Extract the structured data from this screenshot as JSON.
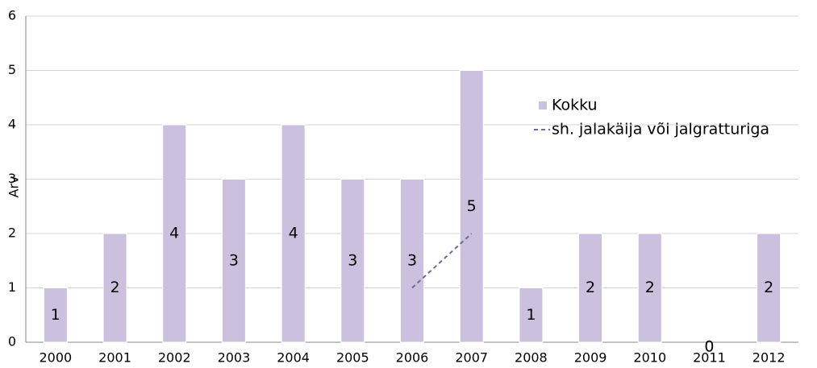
{
  "chart_data": {
    "type": "bar",
    "y_label": "Arv",
    "categories": [
      "2000",
      "2001",
      "2002",
      "2003",
      "2004",
      "2005",
      "2006",
      "2007",
      "2008",
      "2009",
      "2010",
      "2011",
      "2012"
    ],
    "series": [
      {
        "name": "Kokku",
        "type": "bar",
        "color": "#cbc0dd",
        "values": [
          1,
          2,
          4,
          3,
          4,
          3,
          3,
          5,
          1,
          2,
          2,
          0,
          2
        ]
      },
      {
        "name": "sh. jalakäija või jalgratturiga",
        "type": "line",
        "color": "#6b6b9b",
        "values": [
          null,
          null,
          null,
          null,
          null,
          null,
          1,
          2,
          null,
          null,
          null,
          null,
          null
        ]
      }
    ],
    "ylim": [
      0,
      6
    ],
    "yticks": [
      0,
      1,
      2,
      3,
      4,
      5,
      6
    ],
    "grid": true
  }
}
